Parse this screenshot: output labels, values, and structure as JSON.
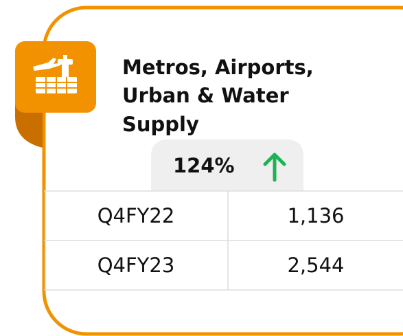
{
  "card": {
    "title_lines": [
      "Metros, Airports,",
      "Urban & Water",
      "Supply"
    ],
    "change": "124%",
    "table": {
      "rows": [
        [
          "Q4FY22",
          "1,136"
        ],
        [
          "Q4FY23",
          "2,544"
        ]
      ]
    }
  }
}
